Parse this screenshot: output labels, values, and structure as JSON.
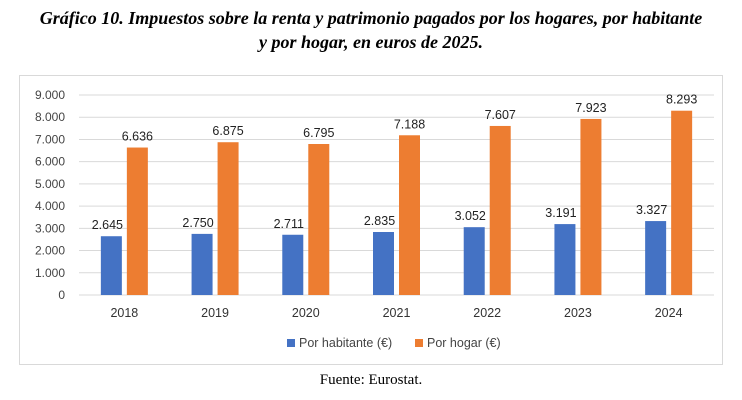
{
  "header": {
    "title_line1": "Gráfico 10. Impuestos sobre la renta y patrimonio pagados por los hogares, por habitante",
    "title_line2": "y por hogar, en euros de 2025."
  },
  "footer": {
    "source": "Fuente: Eurostat."
  },
  "colors": {
    "habitante": "#4472C4",
    "hogar": "#ED7D31",
    "grid": "#D9D9D9"
  },
  "chart_data": {
    "type": "bar",
    "categories": [
      "2018",
      "2019",
      "2020",
      "2021",
      "2022",
      "2023",
      "2024"
    ],
    "series": [
      {
        "name": "Por habitante (€)",
        "values": [
          2645,
          2750,
          2711,
          2835,
          3052,
          3191,
          3327
        ],
        "labels": [
          "2.645",
          "2.750",
          "2.711",
          "2.835",
          "3.052",
          "3.191",
          "3.327"
        ]
      },
      {
        "name": "Por hogar (€)",
        "values": [
          6636,
          6875,
          6795,
          7188,
          7607,
          7923,
          8293
        ],
        "labels": [
          "6.636",
          "6.875",
          "6.795",
          "7.188",
          "7.607",
          "7.923",
          "8.293"
        ]
      }
    ],
    "yticks": [
      "0",
      "1.000",
      "2.000",
      "3.000",
      "4.000",
      "5.000",
      "6.000",
      "7.000",
      "8.000",
      "9.000"
    ],
    "ylim": [
      0,
      9000
    ],
    "ystep": 1000,
    "grid": true,
    "legend": "bottom-center"
  }
}
